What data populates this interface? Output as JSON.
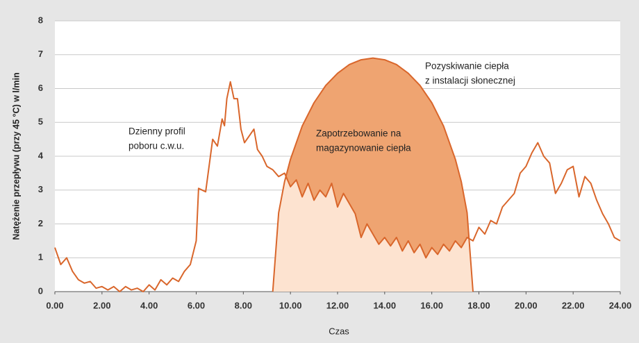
{
  "chart_data": {
    "type": "line",
    "ylabel": "Natężenie przepływu (przy 45 °C) w l/min",
    "xlabel": "Czas",
    "xlim": [
      0,
      24
    ],
    "ylim": [
      0,
      8
    ],
    "xticks": [
      {
        "value": 0,
        "label": "0.00"
      },
      {
        "value": 2,
        "label": "2.00"
      },
      {
        "value": 4,
        "label": "4.00"
      },
      {
        "value": 6,
        "label": "6.00"
      },
      {
        "value": 8,
        "label": "8.00"
      },
      {
        "value": 10,
        "label": "10.00"
      },
      {
        "value": 12,
        "label": "12.00"
      },
      {
        "value": 14,
        "label": "14.00"
      },
      {
        "value": 16,
        "label": "16.00"
      },
      {
        "value": 18,
        "label": "18.00"
      },
      {
        "value": 20,
        "label": "20.00"
      },
      {
        "value": 22,
        "label": "22.00"
      },
      {
        "value": 24,
        "label": "24.00"
      }
    ],
    "yticks": [
      0,
      1,
      2,
      3,
      4,
      5,
      6,
      7,
      8
    ],
    "grid": true,
    "series": [
      {
        "color": "#d9662b",
        "fill": "#fde3d0",
        "x": [
          0,
          0.25,
          0.5,
          0.75,
          1,
          1.25,
          1.5,
          1.75,
          2,
          2.25,
          2.5,
          2.75,
          3,
          3.25,
          3.5,
          3.75,
          4,
          4.25,
          4.5,
          4.75,
          5,
          5.25,
          5.5,
          5.75,
          6,
          6.1,
          6.4,
          6.7,
          6.9,
          7.1,
          7.2,
          7.3,
          7.45,
          7.6,
          7.75,
          7.9,
          8.05,
          8.25,
          8.45,
          8.6,
          8.8,
          9,
          9.25,
          9.5,
          9.75,
          10,
          10.25,
          10.5,
          10.75,
          11,
          11.25,
          11.5,
          11.75,
          12,
          12.25,
          12.5,
          12.75,
          13,
          13.25,
          13.5,
          13.75,
          14,
          14.25,
          14.5,
          14.75,
          15,
          15.25,
          15.5,
          15.75,
          16,
          16.25,
          16.5,
          16.75,
          17,
          17.25,
          17.5,
          17.75,
          18,
          18.25,
          18.5,
          18.75,
          19,
          19.25,
          19.5,
          19.75,
          20,
          20.25,
          20.5,
          20.75,
          21,
          21.25,
          21.5,
          21.75,
          22,
          22.25,
          22.5,
          22.75,
          23,
          23.25,
          23.5,
          23.75,
          24
        ],
        "values": [
          1.3,
          0.8,
          1.0,
          0.6,
          0.35,
          0.25,
          0.3,
          0.1,
          0.15,
          0.05,
          0.15,
          0,
          0.15,
          0.05,
          0.1,
          0,
          0.2,
          0.05,
          0.35,
          0.2,
          0.4,
          0.3,
          0.6,
          0.8,
          1.5,
          3.05,
          2.95,
          4.5,
          4.3,
          5.1,
          4.9,
          5.7,
          6.2,
          5.7,
          5.7,
          4.8,
          4.4,
          4.6,
          4.8,
          4.2,
          4.0,
          3.7,
          3.6,
          3.4,
          3.5,
          3.1,
          3.3,
          2.8,
          3.2,
          2.7,
          3.0,
          2.8,
          3.2,
          2.5,
          2.9,
          2.6,
          2.3,
          1.6,
          2.0,
          1.7,
          1.4,
          1.6,
          1.35,
          1.6,
          1.2,
          1.5,
          1.15,
          1.4,
          1.0,
          1.3,
          1.1,
          1.4,
          1.2,
          1.5,
          1.3,
          1.6,
          1.5,
          1.9,
          1.7,
          2.1,
          2.0,
          2.5,
          2.7,
          2.9,
          3.5,
          3.7,
          4.1,
          4.4,
          4.0,
          3.8,
          2.9,
          3.2,
          3.6,
          3.7,
          2.8,
          3.4,
          3.2,
          2.7,
          2.3,
          2.0,
          1.6,
          1.5
        ]
      },
      {
        "color": "#d9662b",
        "fill": "#efa471",
        "x": [
          9.25,
          9.5,
          9.75,
          10,
          10.5,
          11,
          11.5,
          12,
          12.5,
          13,
          13.5,
          14,
          14.5,
          15,
          15.5,
          16,
          16.5,
          17,
          17.25,
          17.5,
          17.75
        ],
        "values": [
          0,
          2.33,
          3.25,
          3.91,
          4.89,
          5.58,
          6.09,
          6.45,
          6.71,
          6.85,
          6.9,
          6.85,
          6.71,
          6.45,
          6.09,
          5.58,
          4.89,
          3.91,
          3.25,
          2.33,
          0
        ]
      }
    ],
    "annotations": [
      {
        "lines": [
          "Dzienny profil",
          "poboru c.w.u."
        ]
      },
      {
        "lines": [
          "Zapotrzebowanie na",
          "magazynowanie ciepła"
        ]
      },
      {
        "lines": [
          "Pozyskiwanie ciepła",
          "z instalacji słonecznej"
        ]
      }
    ]
  }
}
